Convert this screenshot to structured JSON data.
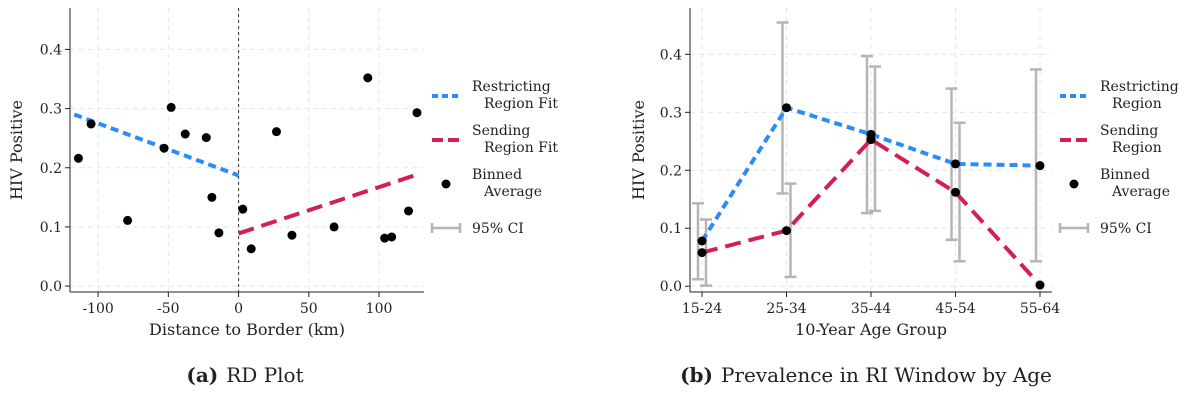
{
  "captions": [
    {
      "prefix": "(a)",
      "text": "RD Plot"
    },
    {
      "prefix": "(b)",
      "text": "Prevalence in RI Window by Age"
    }
  ],
  "colors": {
    "restricting": "#2b8cf7",
    "sending": "#d21f55",
    "points": "#000000",
    "ci": "#b5b5b5",
    "grid": "#e6e6e6",
    "cutoff": "#333333"
  },
  "chart_data": [
    {
      "type": "scatter",
      "xlabel": "Distance to Border (km)",
      "ylabel": "HIV Positive",
      "xlim": [
        -120,
        132
      ],
      "ylim": [
        -0.01,
        0.47
      ],
      "xticks": [
        -100,
        -50,
        0,
        50,
        100
      ],
      "yticks": [
        0.0,
        0.1,
        0.2,
        0.3,
        0.4
      ],
      "ytick_labels": [
        "0.0",
        "0.1",
        "0.2",
        "0.3",
        "0.4"
      ],
      "cutoff_x": 0,
      "grid": true,
      "binned_points": [
        {
          "x": -114,
          "y": 0.216
        },
        {
          "x": -105,
          "y": 0.274
        },
        {
          "x": -79,
          "y": 0.111
        },
        {
          "x": -53,
          "y": 0.233
        },
        {
          "x": -48,
          "y": 0.302
        },
        {
          "x": -38,
          "y": 0.257
        },
        {
          "x": -23,
          "y": 0.251
        },
        {
          "x": -19,
          "y": 0.15
        },
        {
          "x": -14,
          "y": 0.09
        },
        {
          "x": 3,
          "y": 0.13
        },
        {
          "x": 9,
          "y": 0.063
        },
        {
          "x": 27,
          "y": 0.261
        },
        {
          "x": 38,
          "y": 0.086
        },
        {
          "x": 68,
          "y": 0.1
        },
        {
          "x": 92,
          "y": 0.352
        },
        {
          "x": 104,
          "y": 0.081
        },
        {
          "x": 109,
          "y": 0.083
        },
        {
          "x": 121,
          "y": 0.127
        },
        {
          "x": 127,
          "y": 0.293
        }
      ],
      "fits": [
        {
          "name": "Restricting Region Fit",
          "color_key": "restricting",
          "dash": "short",
          "x": [
            -117,
            0
          ],
          "y": [
            0.29,
            0.187
          ]
        },
        {
          "name": "Sending Region Fit",
          "color_key": "sending",
          "dash": "long",
          "x": [
            0,
            129
          ],
          "y": [
            0.089,
            0.19
          ]
        }
      ],
      "legend": [
        {
          "kind": "line-short",
          "color_key": "restricting",
          "lines": [
            "Restricting",
            "Region Fit"
          ]
        },
        {
          "kind": "line-long",
          "color_key": "sending",
          "lines": [
            "Sending",
            "Region Fit"
          ]
        },
        {
          "kind": "point",
          "color_key": "points",
          "lines": [
            "Binned",
            "Average"
          ]
        },
        {
          "kind": "ci",
          "color_key": "ci",
          "lines": [
            "95% CI"
          ]
        }
      ],
      "legend_position": "right"
    },
    {
      "type": "line",
      "xlabel": "10-Year Age Group",
      "ylabel": "HIV Positive",
      "categories": [
        "15-24",
        "25-34",
        "35-44",
        "45-54",
        "55-64"
      ],
      "ylim": [
        -0.01,
        0.48
      ],
      "yticks": [
        0.0,
        0.1,
        0.2,
        0.3,
        0.4
      ],
      "ytick_labels": [
        "0.0",
        "0.1",
        "0.2",
        "0.3",
        "0.4"
      ],
      "grid": true,
      "series": [
        {
          "name": "Restricting Region",
          "color_key": "restricting",
          "dash": "short",
          "values": [
            0.078,
            0.308,
            0.262,
            0.211,
            0.208
          ],
          "ci": [
            [
              0.012,
              0.143
            ],
            [
              0.16,
              0.455
            ],
            [
              0.126,
              0.397
            ],
            [
              0.08,
              0.341
            ],
            [
              0.043,
              0.374
            ]
          ]
        },
        {
          "name": "Sending Region",
          "color_key": "sending",
          "dash": "long",
          "values": [
            0.058,
            0.096,
            0.253,
            0.162,
            0.002
          ],
          "ci": [
            [
              0.001,
              0.115
            ],
            [
              0.016,
              0.177
            ],
            [
              0.13,
              0.379
            ],
            [
              0.043,
              0.282
            ],
            [
              0.0,
              0.0
            ]
          ]
        }
      ],
      "legend": [
        {
          "kind": "line-short",
          "color_key": "restricting",
          "lines": [
            "Restricting",
            "Region"
          ]
        },
        {
          "kind": "line-long",
          "color_key": "sending",
          "lines": [
            "Sending",
            "Region"
          ]
        },
        {
          "kind": "point",
          "color_key": "points",
          "lines": [
            "Binned",
            "Average"
          ]
        },
        {
          "kind": "ci",
          "color_key": "ci",
          "lines": [
            "95% CI"
          ]
        }
      ],
      "legend_position": "right"
    }
  ]
}
